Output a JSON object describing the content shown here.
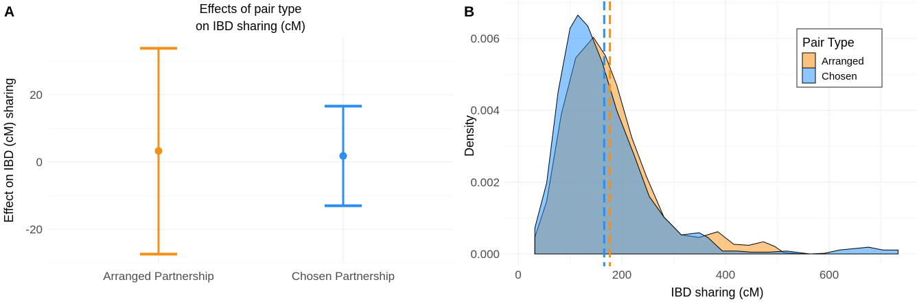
{
  "chart_data": [
    {
      "panel_label": "A",
      "type": "errorbar",
      "title_lines": [
        "Effects of pair type",
        "on IBD sharing (cM)"
      ],
      "xlabel": "",
      "ylabel": "Effect on IBD (cM) sharing",
      "ylim": [
        -30,
        36
      ],
      "yticks": [
        -20,
        0,
        20
      ],
      "ytick_labels": [
        "-20",
        "0",
        "20"
      ],
      "grid": true,
      "categories": [
        "Arranged Partnership",
        "Chosen Partnership"
      ],
      "estimates": [
        3.3,
        1.8
      ],
      "lower": [
        -27.4,
        -13.0
      ],
      "upper": [
        33.8,
        16.6
      ],
      "colors": [
        "#f39019",
        "#2b8ef0"
      ]
    },
    {
      "panel_label": "B",
      "type": "area",
      "title": "",
      "xlabel": "IBD sharing (cM)",
      "ylabel": "Density",
      "xlim": [
        -27,
        770
      ],
      "ylim": [
        -0.0003,
        0.0071
      ],
      "xticks": [
        0,
        200,
        400,
        600
      ],
      "xtick_labels": [
        "0",
        "200",
        "400",
        "600"
      ],
      "yticks": [
        0,
        0.002,
        0.004,
        0.006
      ],
      "ytick_labels": [
        "0.000",
        "0.002",
        "0.004",
        "0.006"
      ],
      "grid": true,
      "legend": {
        "title": "Pair Type",
        "placement": "top-right",
        "entries": [
          "Arranged",
          "Chosen"
        ]
      },
      "series": [
        {
          "name": "Arranged",
          "color": "#f8a33a",
          "median": 177,
          "x": [
            32,
            55,
            83,
            111,
            145,
            168,
            190,
            219,
            247,
            281,
            315,
            349,
            385,
            416,
            445,
            473,
            495,
            512,
            540,
            563
          ],
          "y": [
            0.00046,
            0.00147,
            0.00388,
            0.00546,
            0.00603,
            0.00553,
            0.0047,
            0.00325,
            0.00217,
            0.00103,
            0.00053,
            0.00046,
            0.00062,
            0.00027,
            0.00024,
            0.00034,
            0.00021,
            4e-05,
            1e-05,
            0
          ]
        },
        {
          "name": "Chosen",
          "color": "#1e90ff",
          "median": 166,
          "x": [
            32,
            55,
            77,
            100,
            115,
            134,
            162,
            190,
            224,
            253,
            281,
            315,
            349,
            366,
            394,
            422,
            450,
            484,
            518,
            563,
            591,
            620,
            676,
            704,
            733
          ],
          "y": [
            0.00072,
            0.00198,
            0.00451,
            0.00628,
            0.00665,
            0.00635,
            0.00534,
            0.004,
            0.00274,
            0.0016,
            0.00103,
            0.00053,
            0.00059,
            0.00046,
            8e-05,
            8e-05,
            5e-05,
            5e-05,
            8e-05,
            0,
            2e-05,
            0.00011,
            0.00019,
            0.00011,
            0.00011
          ]
        }
      ]
    }
  ]
}
